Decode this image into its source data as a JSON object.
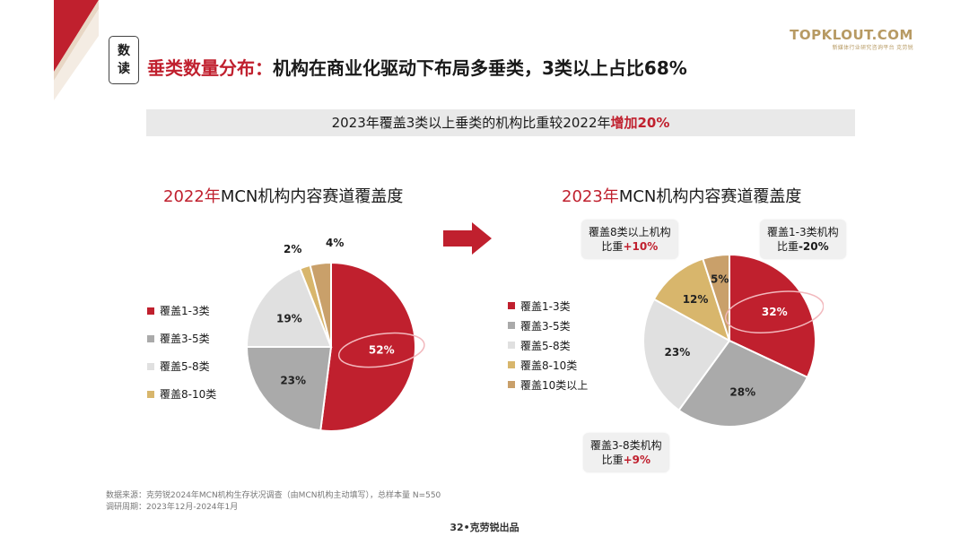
{
  "badge": [
    "数",
    "读"
  ],
  "headline": {
    "part1": "垂类数量分布：",
    "part2": "机构在商业化驱动下布局多垂类，3类以上占比68%"
  },
  "logo": {
    "name": "TOPKLOUT.COM",
    "sub": "新媒体行业研究咨询平台 克劳锐"
  },
  "banner": {
    "part1": "2023年覆盖3类以上垂类的机构比重较2022年",
    "part2": "增加20%"
  },
  "colors": {
    "red": "#c0202e",
    "gray": "#aaaaaa",
    "light": "#e0e0e0",
    "gold": "#d8b66c",
    "tan": "#c9a06a"
  },
  "chart_data": [
    {
      "type": "pie",
      "title_year": "2022年",
      "title_rest": "MCN机构内容赛道覆盖度",
      "categories": [
        "覆盖1-3类",
        "覆盖3-5类",
        "覆盖5-8类",
        "覆盖8-10类",
        ""
      ],
      "values": [
        52,
        23,
        19,
        2,
        4
      ],
      "labels": [
        "52%",
        "23%",
        "19%",
        "2%",
        "4%"
      ],
      "legend": [
        "覆盖1-3类",
        "覆盖3-5类",
        "覆盖5-8类",
        "覆盖8-10类"
      ]
    },
    {
      "type": "pie",
      "title_year": "2023年",
      "title_rest": "MCN机构内容赛道覆盖度",
      "categories": [
        "覆盖1-3类",
        "覆盖3-5类",
        "覆盖5-8类",
        "覆盖8-10类",
        "覆盖10类以上"
      ],
      "values": [
        32,
        28,
        23,
        12,
        5
      ],
      "labels": [
        "32%",
        "28%",
        "23%",
        "12%",
        "5%"
      ],
      "legend": [
        "覆盖1-3类",
        "覆盖3-5类",
        "覆盖5-8类",
        "覆盖8-10类",
        "覆盖10类以上"
      ]
    }
  ],
  "callouts": {
    "c1": {
      "line1": "覆盖8类以上机构",
      "line2a": "比重",
      "line2b": "+10%"
    },
    "c2": {
      "line1": "覆盖1-3类机构",
      "line2a": "比重",
      "line2b": "-20%"
    },
    "c3": {
      "line1": "覆盖3-8类机构",
      "line2a": "比重",
      "line2b": "+9%"
    }
  },
  "source": {
    "line1": "数据来源：克劳锐2024年MCN机构生存状况调查（由MCN机构主动填写），总样本量 N=550",
    "line2": "调研周期：2023年12月-2024年1月"
  },
  "footer": "32•克劳锐出品"
}
